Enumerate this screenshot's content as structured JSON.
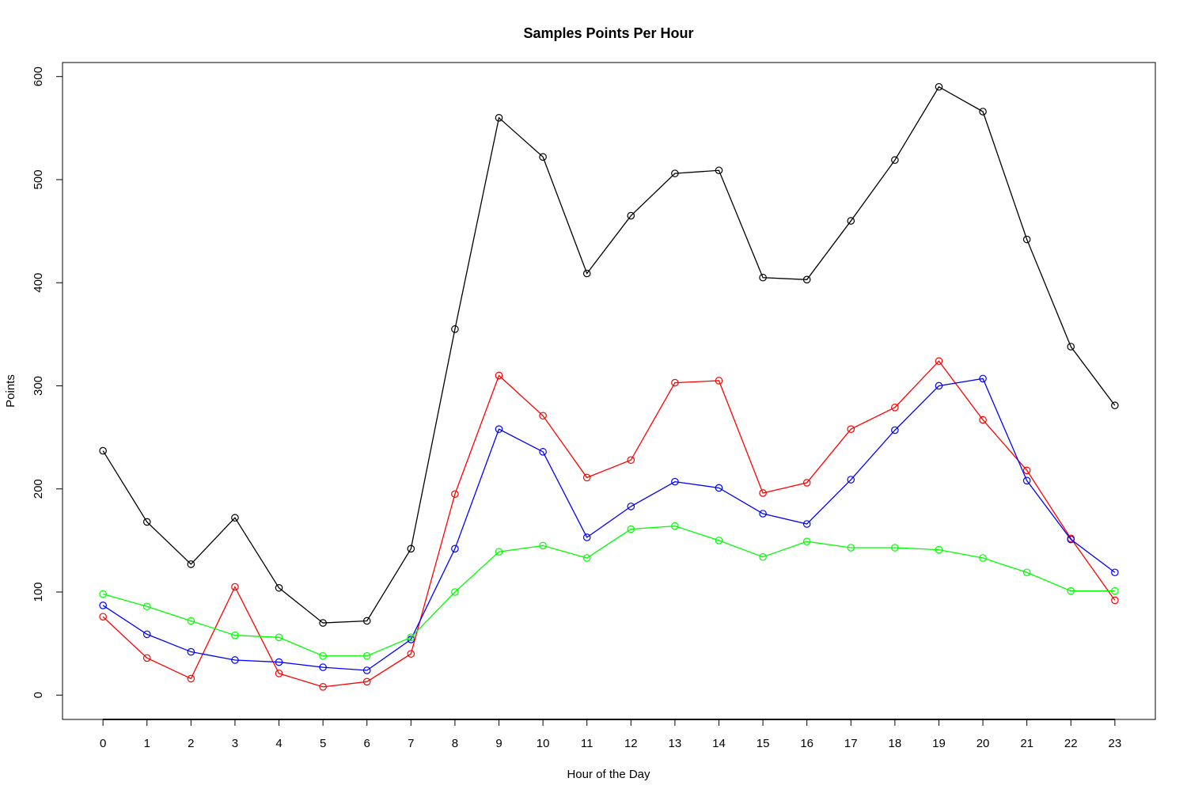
{
  "chart_data": {
    "type": "line",
    "title": "Samples Points Per Hour",
    "xlabel": "Hour of the Day",
    "ylabel": "Points",
    "x": [
      0,
      1,
      2,
      3,
      4,
      5,
      6,
      7,
      8,
      9,
      10,
      11,
      12,
      13,
      14,
      15,
      16,
      17,
      18,
      19,
      20,
      21,
      22,
      23
    ],
    "x_tick_labels": [
      "0",
      "1",
      "2",
      "3",
      "4",
      "5",
      "6",
      "7",
      "8",
      "9",
      "10",
      "11",
      "12",
      "13",
      "14",
      "15",
      "16",
      "17",
      "18",
      "19",
      "20",
      "21",
      "22",
      "23"
    ],
    "y_tick_values": [
      0,
      100,
      200,
      300,
      400,
      500,
      600
    ],
    "y_tick_labels": [
      "0",
      "100",
      "200",
      "300",
      "400",
      "500",
      "600"
    ],
    "xlim": [
      -0.92,
      23.92
    ],
    "ylim": [
      -23.6,
      613.6
    ],
    "grid": false,
    "legend": "none",
    "marker": "open-circle",
    "series": [
      {
        "color": "#000000",
        "values": [
          237,
          168,
          127,
          172,
          104,
          70,
          72,
          142,
          355,
          560,
          522,
          409,
          465,
          506,
          509,
          405,
          403,
          460,
          519,
          590,
          566,
          442,
          338,
          281
        ]
      },
      {
        "color": "#ff0000",
        "values": [
          76,
          36,
          16,
          105,
          21,
          8,
          13,
          40,
          195,
          310,
          271,
          211,
          228,
          303,
          305,
          196,
          206,
          258,
          279,
          324,
          267,
          218,
          152,
          92
        ]
      },
      {
        "color": "#0000ff",
        "values": [
          87,
          59,
          42,
          34,
          32,
          27,
          24,
          54,
          142,
          258,
          236,
          153,
          183,
          207,
          201,
          176,
          166,
          209,
          257,
          300,
          307,
          208,
          151,
          119
        ]
      },
      {
        "color": "#00ff00",
        "values": [
          98,
          86,
          72,
          58,
          56,
          38,
          38,
          56,
          100,
          139,
          145,
          133,
          161,
          164,
          150,
          134,
          149,
          143,
          143,
          141,
          133,
          119,
          101,
          101
        ]
      }
    ]
  }
}
